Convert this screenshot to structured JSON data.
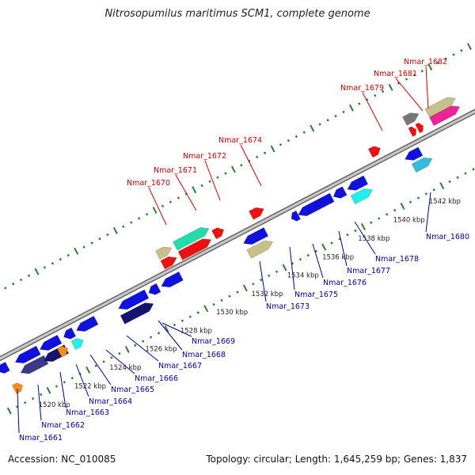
{
  "title": "Nitrosopumilus maritimus SCM1, complete genome",
  "accession": "Accession: NC_010085",
  "summary": "Topology: circular; Length: 1,645,259 bp; Genes: 1,837",
  "colors": {
    "backbone": "#9a9a9a",
    "tick_major": "#2e7d32",
    "tick_minor": "#2e7d32",
    "label_forward": "#cc0000",
    "label_reverse": "#000099",
    "gene_forward": "#ee1111",
    "gene_reverse_blue": "#1111dd",
    "gene_navy": "#14146e",
    "gene_slate": "#3a3a8a",
    "gene_tan": "#c8c08a",
    "gene_mint": "#22ddaa",
    "gene_cyan": "#22eeee",
    "gene_orange": "#ff8c1a",
    "gene_grey": "#777777",
    "gene_pink": "#ee2299"
  },
  "kbp_labels": [
    "1520 kbp",
    "1522 kbp",
    "1524 kbp",
    "1526 kbp",
    "1528 kbp",
    "1530 kbp",
    "1532 kbp",
    "1534 kbp",
    "1536 kbp",
    "1538 kbp",
    "1540 kbp",
    "1542 kbp"
  ],
  "gene_labels_forward": [
    "Nmar_1670",
    "Nmar_1671",
    "Nmar_1672",
    "Nmar_1674",
    "Nmar_1679",
    "Nmar_1681",
    "Nmar_1682"
  ],
  "gene_labels_reverse": [
    "Nmar_1661",
    "Nmar_1662",
    "Nmar_1663",
    "Nmar_1664",
    "Nmar_1665",
    "Nmar_1666",
    "Nmar_1667",
    "Nmar_1668",
    "Nmar_1669",
    "Nmar_1673",
    "Nmar_1675",
    "Nmar_1676",
    "Nmar_1677",
    "Nmar_1678",
    "Nmar_1680"
  ]
}
